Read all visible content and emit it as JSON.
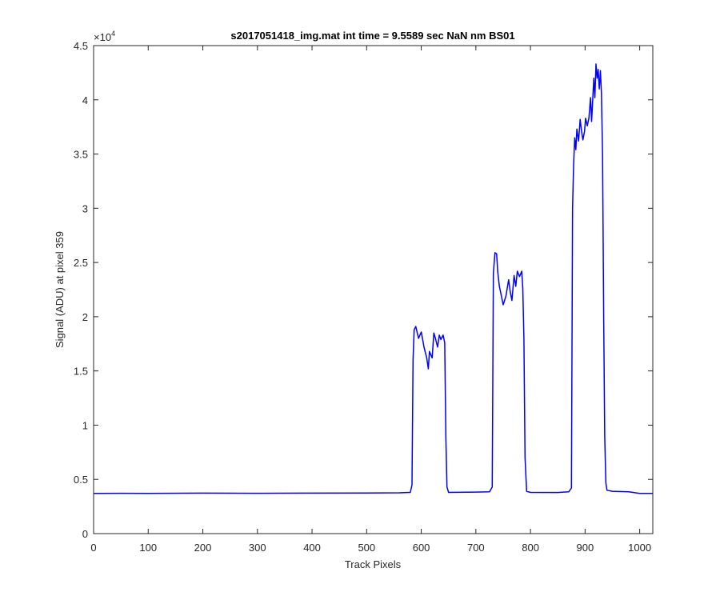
{
  "chart_data": {
    "type": "line",
    "title": "s2017051418_img.mat int time = 9.5589 sec  NaN nm BS01",
    "xlabel": "Track Pixels",
    "ylabel": "Signal (ADU) at pixel 359",
    "xlim": [
      0,
      1024
    ],
    "ylim": [
      0,
      45000
    ],
    "xticks": [
      0,
      100,
      200,
      300,
      400,
      500,
      600,
      700,
      800,
      900,
      1000
    ],
    "xtick_labels": [
      "0",
      "100",
      "200",
      "300",
      "400",
      "500",
      "600",
      "700",
      "800",
      "900",
      "1000"
    ],
    "yticks": [
      0,
      5000,
      10000,
      15000,
      20000,
      25000,
      30000,
      35000,
      40000,
      45000
    ],
    "ytick_labels": [
      "0",
      "0.5",
      "1",
      "1.5",
      "2",
      "2.5",
      "3",
      "3.5",
      "4",
      "4.5"
    ],
    "y_exponent_base": "×10",
    "y_exponent_power": "4",
    "grid": false,
    "legend": "none",
    "line_color": "#0000ff",
    "series": [
      {
        "x": [
          0,
          50,
          100,
          200,
          300,
          400,
          500,
          560,
          580,
          583,
          585,
          587,
          590,
          595,
          600,
          605,
          610,
          613,
          615,
          620,
          623,
          626,
          630,
          633,
          636,
          640,
          643,
          645,
          647,
          650,
          700,
          725,
          730,
          732,
          735,
          738,
          740,
          743,
          746,
          750,
          755,
          760,
          763,
          766,
          770,
          773,
          776,
          780,
          784,
          786,
          788,
          790,
          793,
          800,
          850,
          870,
          875,
          877,
          879,
          881,
          883,
          885,
          888,
          891,
          893,
          896,
          899,
          901,
          904,
          907,
          910,
          912,
          914,
          916,
          918,
          920,
          922,
          924,
          926,
          928,
          930,
          932,
          934,
          936,
          938,
          940,
          950,
          980,
          1000,
          1024
        ],
        "y": [
          3700,
          3720,
          3710,
          3730,
          3720,
          3730,
          3740,
          3760,
          3800,
          4500,
          16000,
          18800,
          19100,
          18000,
          18600,
          17200,
          16200,
          15200,
          16800,
          16200,
          18500,
          18000,
          17200,
          18300,
          17900,
          18300,
          17600,
          9000,
          4300,
          3800,
          3830,
          3850,
          4300,
          24000,
          25900,
          25800,
          24200,
          22800,
          22100,
          21100,
          21900,
          23400,
          22300,
          21500,
          23800,
          22800,
          24200,
          23700,
          24200,
          22600,
          18000,
          7000,
          3900,
          3800,
          3790,
          3850,
          4200,
          30000,
          34000,
          36500,
          35400,
          37300,
          36200,
          38200,
          37300,
          36300,
          37100,
          38300,
          37600,
          38300,
          40200,
          38000,
          40000,
          42000,
          40200,
          43300,
          42000,
          42800,
          41000,
          42700,
          40600,
          35000,
          20000,
          9000,
          4700,
          4000,
          3900,
          3850,
          3700,
          3700
        ]
      }
    ]
  }
}
